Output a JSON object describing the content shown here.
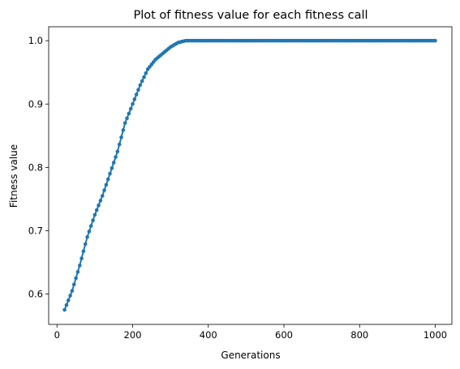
{
  "chart_data": {
    "type": "line",
    "title": "Plot of fitness value for each fitness call",
    "xlabel": "Generations",
    "ylabel": "Fitness value",
    "xlim": [
      -22,
      1044
    ],
    "ylim": [
      0.552,
      1.022
    ],
    "xticks": [
      0,
      200,
      400,
      600,
      800,
      1000
    ],
    "yticks": [
      0.6,
      0.7,
      0.8,
      0.9,
      1.0
    ],
    "xtick_labels": [
      "0",
      "200",
      "400",
      "600",
      "800",
      "1000"
    ],
    "ytick_labels": [
      "0.6",
      "0.7",
      "0.8",
      "0.9",
      "1.0"
    ],
    "grid": false,
    "legend": "none",
    "series": [
      {
        "color": "#1f77b4",
        "marker": "circle",
        "x": [
          20,
          40,
          60,
          80,
          100,
          120,
          140,
          160,
          180,
          200,
          220,
          240,
          260,
          280,
          300,
          320,
          340,
          360,
          400,
          500,
          600,
          700,
          800,
          900,
          1000
        ],
        "y": [
          0.575,
          0.605,
          0.645,
          0.69,
          0.725,
          0.755,
          0.79,
          0.825,
          0.87,
          0.9,
          0.93,
          0.955,
          0.97,
          0.98,
          0.99,
          0.997,
          1.0,
          1.0,
          1.0,
          1.0,
          1.0,
          1.0,
          1.0,
          1.0,
          1.0
        ]
      }
    ]
  }
}
